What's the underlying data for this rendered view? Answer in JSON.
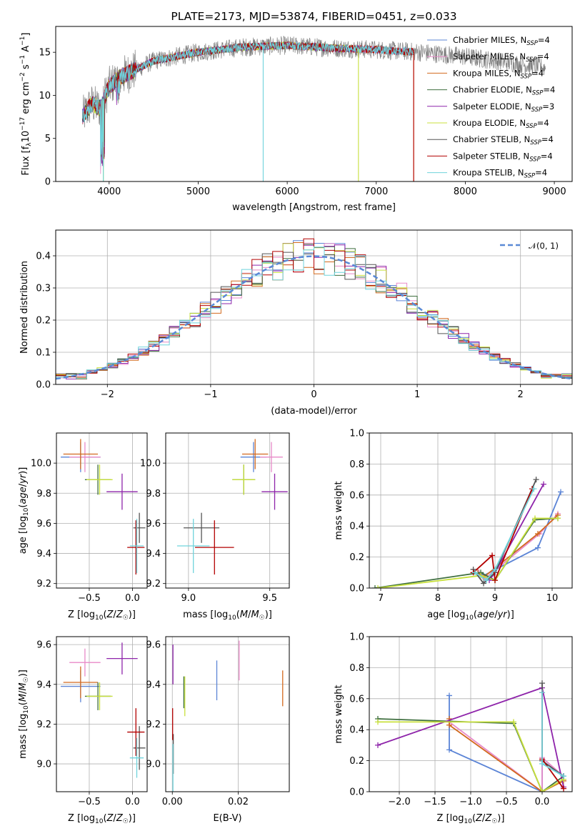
{
  "colors": {
    "Chabrier MILES": "#5b84d6",
    "Salpeter MILES": "#e88ac8",
    "Kroupa MILES": "#d2691e",
    "Chabrier ELODIE": "#3f6f3f",
    "Salpeter ELODIE": "#8e24aa",
    "Kroupa ELODIE": "#c8e03c",
    "Chabrier STELIB": "#555555",
    "Salpeter STELIB": "#b30000",
    "Kroupa STELIB": "#6fd3dc"
  },
  "chart_data": [
    {
      "panel": "spectrum",
      "type": "line",
      "title": "PLATE=2173, MJD=53874, FIBERID=0451, z=0.033",
      "xlabel": "wavelength [Angstrom, rest frame]",
      "ylabel": "Flux [fλ10⁻¹⁷ erg cm⁻² s⁻¹ A⁻¹]",
      "xlim": [
        3400,
        9200
      ],
      "ylim": [
        0,
        18
      ],
      "xticks": [
        4000,
        5000,
        6000,
        7000,
        8000,
        9000
      ],
      "yticks": [
        0,
        5,
        10,
        15
      ],
      "legend_position": "upper right",
      "legend": [
        {
          "base": "Chabrier MILES",
          "sub": "SSP",
          "n": "=4"
        },
        {
          "base": "Salpeter MILES",
          "sub": "SSP",
          "n": "=4"
        },
        {
          "base": "Kroupa MILES",
          "sub": "SSP",
          "n": "=4"
        },
        {
          "base": "Chabrier ELODIE",
          "sub": "SSP",
          "n": "=4"
        },
        {
          "base": "Salpeter ELODIE",
          "sub": "SSP",
          "n": "=3"
        },
        {
          "base": "Kroupa ELODIE",
          "sub": "SSP",
          "n": "=4"
        },
        {
          "base": "Chabrier STELIB",
          "sub": "SSP",
          "n": "=4"
        },
        {
          "base": "Salpeter STELIB",
          "sub": "SSP",
          "n": "=4"
        },
        {
          "base": "Kroupa STELIB",
          "sub": "SSP",
          "n": "=4"
        }
      ],
      "continuum": [
        [
          3700,
          7.5
        ],
        [
          3800,
          9
        ],
        [
          3900,
          8.5
        ],
        [
          4000,
          11
        ],
        [
          4100,
          12
        ],
        [
          4300,
          13
        ],
        [
          4500,
          14
        ],
        [
          5000,
          15
        ],
        [
          5500,
          15.6
        ],
        [
          6000,
          15.8
        ],
        [
          6500,
          15.5
        ],
        [
          7000,
          15.3
        ],
        [
          7500,
          15
        ],
        [
          8000,
          14.5
        ],
        [
          8500,
          13.8
        ],
        [
          8900,
          13.2
        ]
      ],
      "range_end": {
        "ELODIE": 6800,
        "STELIB": 7420,
        "MILES": 7420,
        "data": 8900
      },
      "dip_lines": [
        {
          "x": 3935,
          "series": [
            "Kroupa ELODIE",
            "Kroupa STELIB"
          ],
          "y": 0
        },
        {
          "x": 5730,
          "series": [
            "Kroupa STELIB"
          ],
          "y": 0
        },
        {
          "x": 6800,
          "series": [
            "Kroupa ELODIE"
          ],
          "y": 0
        },
        {
          "x": 7420,
          "series": [
            "Kroupa MILES",
            "Salpeter STELIB"
          ],
          "y": 0
        }
      ]
    },
    {
      "panel": "residual_hist",
      "type": "line",
      "xlabel": "(data-model)/error",
      "ylabel": "Normed distribution",
      "xlim": [
        -2.5,
        2.5
      ],
      "ylim": [
        0,
        0.48
      ],
      "xticks": [
        -2,
        -1,
        0,
        1,
        2
      ],
      "yticks": [
        0.0,
        0.1,
        0.2,
        0.3,
        0.4
      ],
      "legend": "𝒩(0, 1)",
      "legend_position": "upper right",
      "bin_width": 0.1,
      "hist_series": [
        "Chabrier MILES",
        "Salpeter MILES",
        "Kroupa MILES",
        "Chabrier ELODIE",
        "Salpeter ELODIE",
        "Kroupa ELODIE",
        "Chabrier STELIB",
        "Salpeter STELIB",
        "Kroupa STELIB"
      ]
    },
    {
      "panel": "age_vs_Z",
      "type": "scatter",
      "xlabel": "Z [log₁₀(Z/Z☉)]",
      "ylabel": "age  [log₁₀(age/yr)]",
      "xlim": [
        -0.88,
        0.17
      ],
      "ylim": [
        9.17,
        10.2
      ],
      "xticks": [
        -0.5,
        0.0
      ],
      "yticks": [
        9.2,
        9.4,
        9.6,
        9.8,
        10.0
      ],
      "points": [
        {
          "s": "Chabrier MILES",
          "x": -0.6,
          "y": 10.04,
          "xe": 0.23,
          "ye": 0.1
        },
        {
          "s": "Salpeter MILES",
          "x": -0.55,
          "y": 10.04,
          "xe": 0.18,
          "ye": 0.1
        },
        {
          "s": "Kroupa MILES",
          "x": -0.6,
          "y": 10.06,
          "xe": 0.2,
          "ye": 0.1
        },
        {
          "s": "Chabrier ELODIE",
          "x": -0.4,
          "y": 9.89,
          "xe": 0.15,
          "ye": 0.1
        },
        {
          "s": "Salpeter ELODIE",
          "x": -0.12,
          "y": 9.81,
          "xe": 0.18,
          "ye": 0.12
        },
        {
          "s": "Kroupa ELODIE",
          "x": -0.38,
          "y": 9.89,
          "xe": 0.15,
          "ye": 0.1
        },
        {
          "s": "Chabrier STELIB",
          "x": 0.08,
          "y": 9.57,
          "xe": 0.07,
          "ye": 0.1
        },
        {
          "s": "Salpeter STELIB",
          "x": 0.04,
          "y": 9.44,
          "xe": 0.1,
          "ye": 0.18
        },
        {
          "s": "Kroupa STELIB",
          "x": 0.05,
          "y": 9.45,
          "xe": 0.08,
          "ye": 0.18
        }
      ]
    },
    {
      "panel": "age_vs_mass",
      "type": "scatter",
      "xlabel": "mass [log₁₀(M/M☉)]",
      "xlim": [
        8.86,
        9.62
      ],
      "ylim": [
        9.17,
        10.2
      ],
      "xticks": [
        9.0,
        9.5
      ],
      "yticks": [
        9.2,
        9.4,
        9.6,
        9.8,
        10.0
      ],
      "points": [
        {
          "s": "Chabrier MILES",
          "x": 9.4,
          "y": 10.04,
          "xe": 0.08,
          "ye": 0.1
        },
        {
          "s": "Salpeter MILES",
          "x": 9.51,
          "y": 10.04,
          "xe": 0.07,
          "ye": 0.1
        },
        {
          "s": "Kroupa MILES",
          "x": 9.41,
          "y": 10.06,
          "xe": 0.08,
          "ye": 0.1
        },
        {
          "s": "Chabrier ELODIE",
          "x": 9.34,
          "y": 9.89,
          "xe": 0.07,
          "ye": 0.1
        },
        {
          "s": "Salpeter ELODIE",
          "x": 9.53,
          "y": 9.81,
          "xe": 0.08,
          "ye": 0.12
        },
        {
          "s": "Kroupa ELODIE",
          "x": 9.34,
          "y": 9.89,
          "xe": 0.07,
          "ye": 0.1
        },
        {
          "s": "Chabrier STELIB",
          "x": 9.08,
          "y": 9.57,
          "xe": 0.11,
          "ye": 0.1
        },
        {
          "s": "Salpeter STELIB",
          "x": 9.16,
          "y": 9.44,
          "xe": 0.12,
          "ye": 0.18
        },
        {
          "s": "Kroupa STELIB",
          "x": 9.03,
          "y": 9.45,
          "xe": 0.1,
          "ye": 0.18
        }
      ]
    },
    {
      "panel": "mass_weight_vs_age",
      "type": "line",
      "xlabel": "age  [log₁₀(age/yr)]",
      "ylabel": "mass weight",
      "xlim": [
        6.8,
        10.35
      ],
      "ylim": [
        0,
        1.0
      ],
      "xticks": [
        7,
        8,
        9,
        10
      ],
      "yticks": [
        0.0,
        0.2,
        0.4,
        0.6,
        0.8,
        1.0
      ],
      "series": [
        {
          "name": "Chabrier MILES",
          "x": [
            8.7,
            8.8,
            9.75,
            10.15
          ],
          "y": [
            0.1,
            0.08,
            0.26,
            0.62
          ]
        },
        {
          "name": "Salpeter MILES",
          "x": [
            8.72,
            8.82,
            9.78,
            10.1
          ],
          "y": [
            0.1,
            0.06,
            0.35,
            0.48
          ]
        },
        {
          "name": "Kroupa MILES",
          "x": [
            8.7,
            8.8,
            9.75,
            10.1
          ],
          "y": [
            0.1,
            0.07,
            0.35,
            0.47
          ]
        },
        {
          "name": "Chabrier ELODIE",
          "x": [
            6.9,
            8.75,
            9.0,
            9.7,
            10.1
          ],
          "y": [
            0.0,
            0.1,
            0.05,
            0.44,
            0.45
          ]
        },
        {
          "name": "Salpeter ELODIE",
          "x": [
            8.9,
            9.0,
            9.85
          ],
          "y": [
            0.05,
            0.1,
            0.67
          ]
        },
        {
          "name": "Kroupa ELODIE",
          "x": [
            6.95,
            8.75,
            9.0,
            9.7,
            10.1
          ],
          "y": [
            0.0,
            0.08,
            0.05,
            0.45,
            0.45
          ]
        },
        {
          "name": "Chabrier STELIB",
          "x": [
            8.62,
            8.8,
            9.0,
            9.72
          ],
          "y": [
            0.12,
            0.03,
            0.1,
            0.7
          ]
        },
        {
          "name": "Salpeter STELIB",
          "x": [
            8.62,
            8.95,
            9.0,
            9.65
          ],
          "y": [
            0.1,
            0.21,
            0.05,
            0.64
          ]
        },
        {
          "name": "Kroupa STELIB",
          "x": [
            8.65,
            8.85,
            9.0,
            9.68
          ],
          "y": [
            0.1,
            0.05,
            0.12,
            0.64
          ]
        }
      ]
    },
    {
      "panel": "mass_vs_Z",
      "type": "scatter",
      "xlabel": "Z [log₁₀(Z/Z☉)]",
      "ylabel": "mass [log₁₀(M/M☉)]",
      "xlim": [
        -0.88,
        0.17
      ],
      "ylim": [
        8.86,
        9.64
      ],
      "xticks": [
        -0.5,
        0.0
      ],
      "yticks": [
        9.0,
        9.2,
        9.4,
        9.6
      ],
      "points": [
        {
          "s": "Chabrier MILES",
          "x": -0.6,
          "y": 9.39,
          "xe": 0.23,
          "ye": 0.08
        },
        {
          "s": "Salpeter MILES",
          "x": -0.55,
          "y": 9.51,
          "xe": 0.18,
          "ye": 0.07
        },
        {
          "s": "Kroupa MILES",
          "x": -0.6,
          "y": 9.41,
          "xe": 0.2,
          "ye": 0.08
        },
        {
          "s": "Chabrier ELODIE",
          "x": -0.4,
          "y": 9.34,
          "xe": 0.15,
          "ye": 0.07
        },
        {
          "s": "Salpeter ELODIE",
          "x": -0.12,
          "y": 9.53,
          "xe": 0.18,
          "ye": 0.08
        },
        {
          "s": "Kroupa ELODIE",
          "x": -0.38,
          "y": 9.34,
          "xe": 0.15,
          "ye": 0.07
        },
        {
          "s": "Chabrier STELIB",
          "x": 0.08,
          "y": 9.08,
          "xe": 0.07,
          "ye": 0.11
        },
        {
          "s": "Salpeter STELIB",
          "x": 0.04,
          "y": 9.16,
          "xe": 0.1,
          "ye": 0.12
        },
        {
          "s": "Kroupa STELIB",
          "x": 0.05,
          "y": 9.03,
          "xe": 0.08,
          "ye": 0.1
        }
      ]
    },
    {
      "panel": "mass_vs_EBV",
      "type": "scatter",
      "xlabel": "E(B-V)",
      "xlim": [
        -0.002,
        0.0355
      ],
      "ylim": [
        8.86,
        9.64
      ],
      "xticks": [
        0.0,
        0.02
      ],
      "yticks": [
        9.0,
        9.2,
        9.4,
        9.6
      ],
      "points": [
        {
          "s": "Chabrier MILES",
          "x": 0.0135,
          "y": 9.42,
          "ye": 0.1
        },
        {
          "s": "Salpeter MILES",
          "x": 0.0203,
          "y": 9.52,
          "ye": 0.1
        },
        {
          "s": "Kroupa MILES",
          "x": 0.0335,
          "y": 9.38,
          "ye": 0.09
        },
        {
          "s": "Chabrier ELODIE",
          "x": 0.0035,
          "y": 9.36,
          "ye": 0.08
        },
        {
          "s": "Salpeter ELODIE",
          "x": 0.0002,
          "y": 9.5,
          "ye": 0.1
        },
        {
          "s": "Kroupa ELODIE",
          "x": 0.0038,
          "y": 9.34,
          "ye": 0.1
        },
        {
          "s": "Chabrier STELIB",
          "x": 0.0003,
          "y": 9.05,
          "ye": 0.1
        },
        {
          "s": "Salpeter STELIB",
          "x": 0.0001,
          "y": 9.2,
          "ye": 0.08
        },
        {
          "s": "Kroupa STELIB",
          "x": 0.0002,
          "y": 8.98,
          "ye": 0.12
        }
      ]
    },
    {
      "panel": "mass_weight_vs_Z",
      "type": "line",
      "xlabel": "Z [log₁₀(Z/Z☉)]",
      "ylabel": "mass weight",
      "xlim": [
        -2.42,
        0.42
      ],
      "ylim": [
        0,
        1.0
      ],
      "xticks": [
        -2.0,
        -1.5,
        -1.0,
        -0.5,
        0.0
      ],
      "yticks": [
        0.0,
        0.2,
        0.4,
        0.6,
        0.8,
        1.0
      ],
      "series": [
        {
          "name": "Chabrier MILES",
          "x": [
            -1.3,
            -1.3,
            0.0,
            0.0,
            0.3
          ],
          "y": [
            0.62,
            0.27,
            0.0,
            0.2,
            0.1
          ]
        },
        {
          "name": "Salpeter MILES",
          "x": [
            -1.3,
            0.0,
            0.0,
            0.3
          ],
          "y": [
            0.45,
            0.0,
            0.22,
            0.1
          ]
        },
        {
          "name": "Kroupa MILES",
          "x": [
            -1.3,
            -1.3,
            0.0,
            0.3
          ],
          "y": [
            0.47,
            0.43,
            0.0,
            0.07
          ]
        },
        {
          "name": "Chabrier ELODIE",
          "x": [
            -2.3,
            -0.4,
            0.0,
            0.3
          ],
          "y": [
            0.47,
            0.44,
            0.0,
            0.1
          ]
        },
        {
          "name": "Salpeter ELODIE",
          "x": [
            -2.3,
            0.0,
            0.3
          ],
          "y": [
            0.3,
            0.67,
            0.03
          ]
        },
        {
          "name": "Kroupa ELODIE",
          "x": [
            -2.3,
            -0.4,
            0.0,
            0.3
          ],
          "y": [
            0.45,
            0.45,
            0.0,
            0.08
          ]
        },
        {
          "name": "Chabrier STELIB",
          "x": [
            0.0,
            0.0,
            0.3
          ],
          "y": [
            0.7,
            0.2,
            0.1
          ]
        },
        {
          "name": "Salpeter STELIB",
          "x": [
            0.0,
            0.0,
            0.3
          ],
          "y": [
            0.64,
            0.21,
            0.02
          ]
        },
        {
          "name": "Kroupa STELIB",
          "x": [
            0.0,
            0.0,
            0.3
          ],
          "y": [
            0.64,
            0.18,
            0.1
          ]
        }
      ]
    }
  ]
}
